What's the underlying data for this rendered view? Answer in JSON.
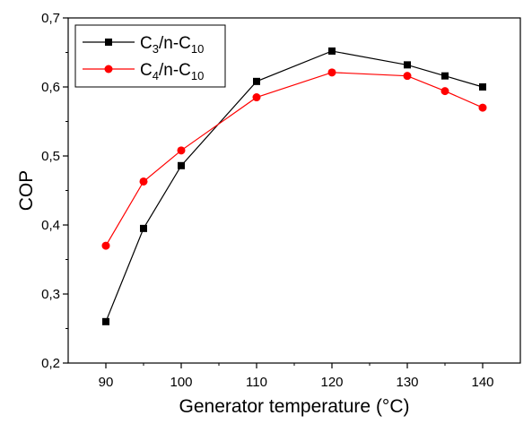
{
  "chart_data": {
    "type": "line",
    "title": "",
    "xlabel": "Generator temperature (°C)",
    "ylabel": "COP",
    "xlim": [
      85,
      145
    ],
    "ylim": [
      0.2,
      0.7
    ],
    "x_ticks": [
      90,
      100,
      110,
      120,
      130,
      140
    ],
    "x_tick_labels": [
      "90",
      "100",
      "110",
      "120",
      "130",
      "140"
    ],
    "y_ticks": [
      0.2,
      0.3,
      0.4,
      0.5,
      0.6,
      0.7
    ],
    "y_tick_labels": [
      "0,2",
      "0,3",
      "0,4",
      "0,5",
      "0,6",
      "0,7"
    ],
    "grid": false,
    "legend_position": "top-left",
    "series": [
      {
        "name": "C3/n-C10",
        "legend": {
          "base": "C",
          "s1": "3",
          "mid": "/n-C",
          "s2": "10"
        },
        "color": "#000000",
        "marker": "square",
        "x": [
          90,
          95,
          100,
          110,
          120,
          130,
          135,
          140
        ],
        "y": [
          0.26,
          0.395,
          0.486,
          0.608,
          0.652,
          0.632,
          0.616,
          0.6
        ]
      },
      {
        "name": "C4/n-C10",
        "legend": {
          "base": "C",
          "s1": "4",
          "mid": "/n-C",
          "s2": "10"
        },
        "color": "#ff0000",
        "marker": "circle",
        "x": [
          90,
          95,
          100,
          110,
          120,
          130,
          135,
          140
        ],
        "y": [
          0.37,
          0.463,
          0.508,
          0.585,
          0.621,
          0.616,
          0.594,
          0.57
        ]
      }
    ]
  }
}
